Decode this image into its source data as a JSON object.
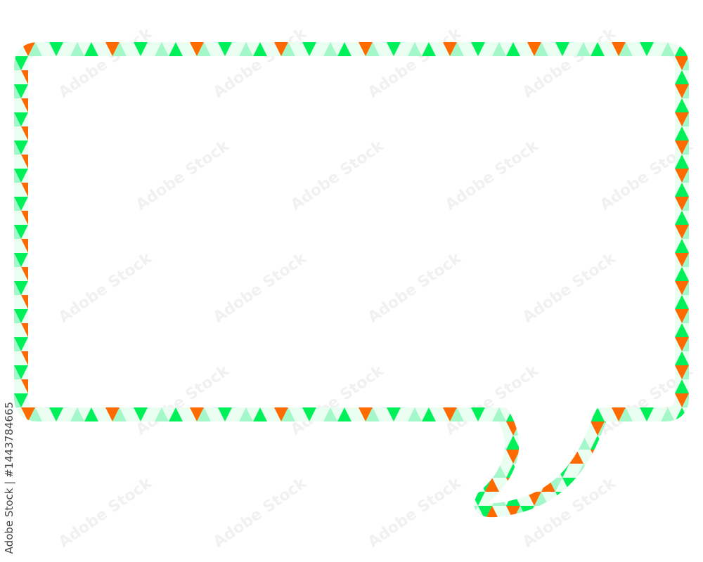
{
  "image": {
    "subject": "speech-bubble-frame",
    "colors": {
      "orange": "#ff6a00",
      "green": "#00f05a",
      "light_green": "#a3f7c9",
      "pale_green": "#e9fdf1",
      "background": "#ffffff"
    }
  },
  "watermark": {
    "text": "Adobe Stock"
  },
  "credit": {
    "text": "Adobe Stock | #1443784665"
  }
}
